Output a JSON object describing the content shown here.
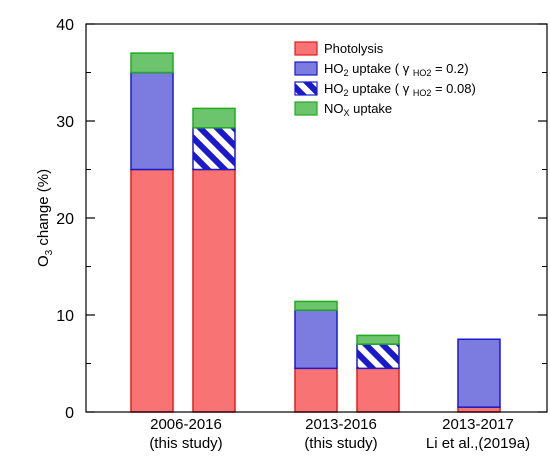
{
  "chart_data": {
    "type": "bar",
    "stacked": true,
    "ylabel": {
      "prefix": "O",
      "sub": "3",
      "suffix": " change (%)"
    },
    "ylim": [
      0,
      40
    ],
    "yticks": [
      "0",
      "10",
      "20",
      "30",
      "40"
    ],
    "grid": false,
    "groups": [
      {
        "label_lines": [
          "2006-2016",
          "(this study)"
        ]
      },
      {
        "label_lines": [
          "2013-2016",
          "(this study)"
        ]
      },
      {
        "label_lines": [
          "2013-2017",
          "Li et al.,(2019a)"
        ]
      }
    ],
    "series": [
      {
        "key": "photolysis",
        "color": "#f87474",
        "edge": "#e41c1c",
        "pattern": "solid",
        "legend": {
          "main": "Photolysis"
        }
      },
      {
        "key": "ho2_02",
        "color": "#7b7be0",
        "edge": "#1a1acc",
        "pattern": "solid",
        "legend": {
          "main": "HO",
          "sub": "2",
          "rest": " uptake ( γ ",
          "sub2": "HO2",
          "rest2": " = 0.2)"
        }
      },
      {
        "key": "ho2_008",
        "color": "#1a1acc",
        "edge": "#1a1acc",
        "pattern": "hatch",
        "legend": {
          "main": "HO",
          "sub": "2",
          "rest": " uptake ( γ ",
          "sub2": "HO2",
          "rest2": " = 0.08)"
        }
      },
      {
        "key": "nox",
        "color": "#6cc46c",
        "edge": "#22aa22",
        "pattern": "solid",
        "legend": {
          "main": "NO",
          "sub": "X",
          "rest": " uptake"
        }
      }
    ],
    "bars": [
      {
        "group": 0,
        "segments": [
          {
            "series": "photolysis",
            "value": 25.0
          },
          {
            "series": "ho2_02",
            "value": 10.0
          },
          {
            "series": "nox",
            "value": 2.0
          }
        ]
      },
      {
        "group": 0,
        "segments": [
          {
            "series": "photolysis",
            "value": 25.0
          },
          {
            "series": "ho2_008",
            "value": 4.3
          },
          {
            "series": "nox",
            "value": 2.0
          }
        ]
      },
      {
        "group": 1,
        "segments": [
          {
            "series": "photolysis",
            "value": 4.5
          },
          {
            "series": "ho2_02",
            "value": 6.0
          },
          {
            "series": "nox",
            "value": 0.9
          }
        ]
      },
      {
        "group": 1,
        "segments": [
          {
            "series": "photolysis",
            "value": 4.5
          },
          {
            "series": "ho2_008",
            "value": 2.5
          },
          {
            "series": "nox",
            "value": 0.9
          }
        ]
      },
      {
        "group": 2,
        "segments": [
          {
            "series": "photolysis",
            "value": 0.5
          },
          {
            "series": "ho2_02",
            "value": 7.0
          }
        ]
      }
    ]
  }
}
